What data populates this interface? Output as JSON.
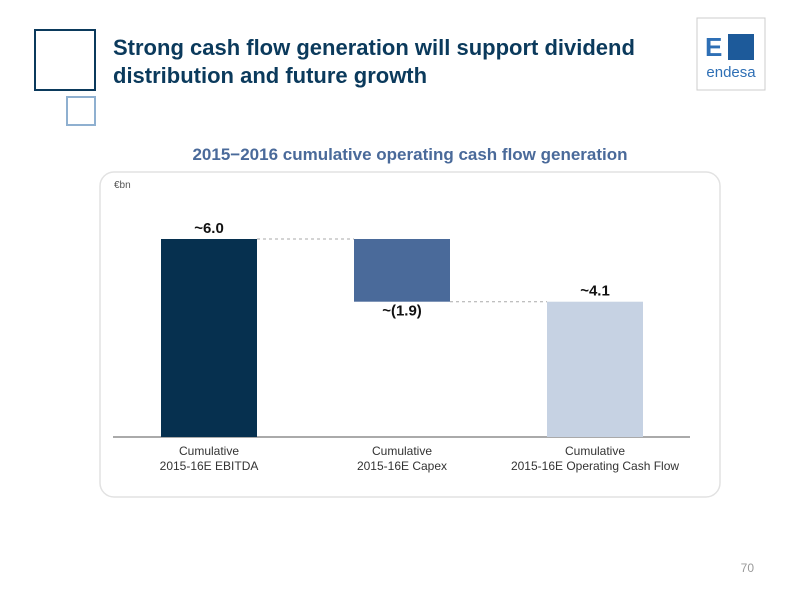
{
  "header": {
    "title": "Strong cash flow generation will support dividend distribution and future growth",
    "logo_mark": "E",
    "logo_text": "endesa"
  },
  "chart_data": {
    "type": "waterfall",
    "title": "2015−2016 cumulative operating cash flow generation",
    "unit": "€bn",
    "categories": [
      "Cumulative\n2015-16E EBITDA",
      "Cumulative\n2015-16E Capex",
      "Cumulative\n2015-16E Operating Cash Flow"
    ],
    "values": [
      6.0,
      -1.9,
      4.1
    ],
    "value_labels": [
      "~6.0",
      "~(1.9)",
      "~4.1"
    ],
    "colors": [
      "#06304f",
      "#4a6a9a",
      "#c6d2e3"
    ]
  },
  "footer": {
    "page_number": "70"
  }
}
